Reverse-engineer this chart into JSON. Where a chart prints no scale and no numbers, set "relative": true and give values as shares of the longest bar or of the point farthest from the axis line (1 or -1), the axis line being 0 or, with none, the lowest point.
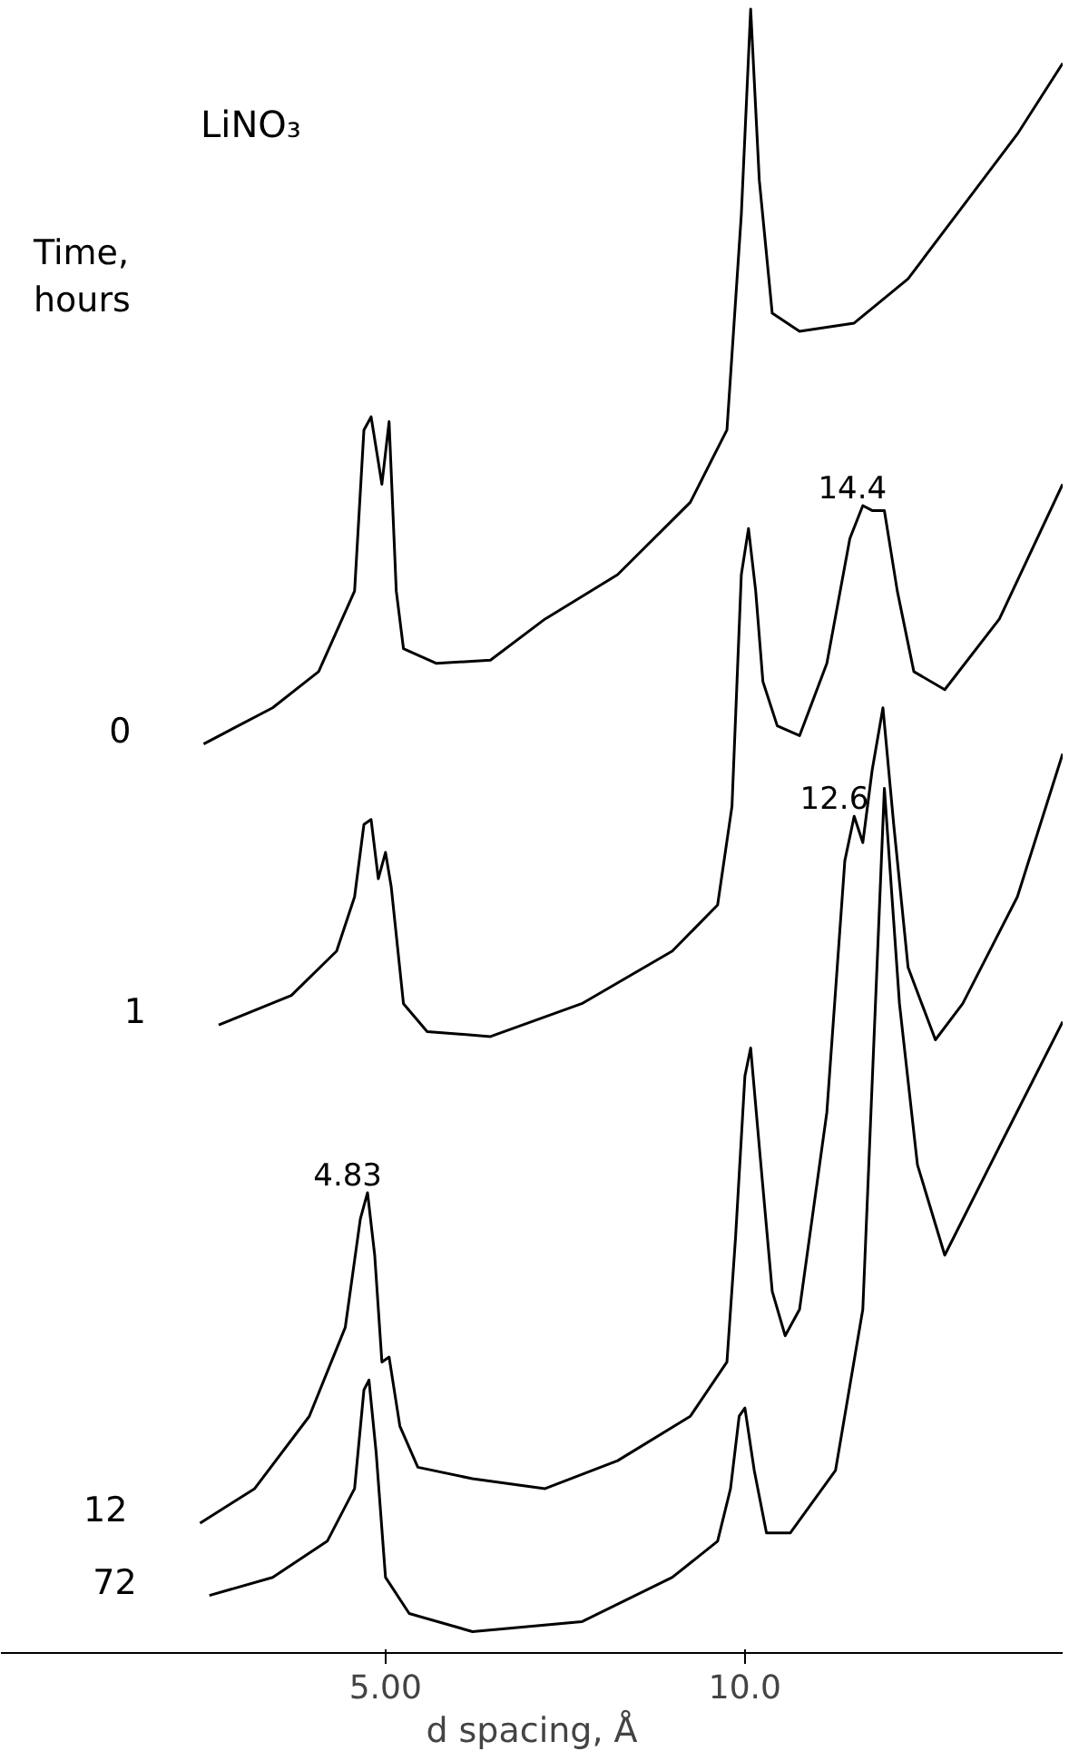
{
  "chart_data": {
    "type": "line",
    "title": "LiNO₃",
    "legend_title": "Time, hours",
    "xlabel": "d spacing, Å",
    "relative": true,
    "xlim": [
      -0.35,
      14.42
    ],
    "xticks": [
      {
        "value": 5,
        "label": "5.00"
      },
      {
        "value": 10,
        "label": "10.0"
      }
    ],
    "grid": false,
    "legend": false,
    "marker": "none",
    "line_style": "solid",
    "series": [
      {
        "name": "0",
        "color": "#000000",
        "x": [
          2.47,
          3.43,
          4.07,
          4.57,
          4.7,
          4.8,
          4.95,
          5.05,
          5.15,
          5.25,
          5.71,
          6.46,
          7.22,
          8.23,
          9.24,
          9.75,
          9.95,
          10.08,
          10.2,
          10.38,
          10.76,
          11.52,
          12.27,
          13.03,
          13.79,
          14.42
        ],
        "values": [
          0.553,
          0.575,
          0.597,
          0.646,
          0.744,
          0.752,
          0.711,
          0.749,
          0.646,
          0.611,
          0.602,
          0.604,
          0.629,
          0.656,
          0.7,
          0.744,
          0.875,
          1.0,
          0.896,
          0.815,
          0.804,
          0.809,
          0.836,
          0.88,
          0.924,
          0.967
        ]
      },
      {
        "name": "1",
        "color": "#000000",
        "x": [
          2.68,
          3.69,
          4.32,
          4.57,
          4.7,
          4.8,
          4.9,
          5.0,
          5.08,
          5.25,
          5.58,
          6.46,
          7.73,
          8.99,
          9.62,
          9.82,
          9.95,
          10.05,
          10.15,
          10.25,
          10.45,
          10.76,
          11.14,
          11.46,
          11.64,
          11.77,
          11.94,
          12.12,
          12.35,
          12.78,
          13.54,
          14.42
        ],
        "values": [
          0.382,
          0.4,
          0.427,
          0.46,
          0.504,
          0.507,
          0.471,
          0.487,
          0.466,
          0.395,
          0.378,
          0.375,
          0.395,
          0.427,
          0.455,
          0.515,
          0.656,
          0.684,
          0.646,
          0.591,
          0.564,
          0.558,
          0.602,
          0.678,
          0.698,
          0.695,
          0.695,
          0.646,
          0.597,
          0.586,
          0.629,
          0.711
        ]
      },
      {
        "name": "12",
        "color": "#000000",
        "x": [
          2.42,
          3.18,
          3.94,
          4.44,
          4.65,
          4.75,
          4.85,
          4.95,
          5.05,
          5.2,
          5.45,
          6.21,
          7.22,
          8.23,
          9.24,
          9.75,
          9.87,
          10.0,
          10.08,
          10.2,
          10.38,
          10.56,
          10.76,
          11.14,
          11.39,
          11.52,
          11.64,
          11.77,
          11.92,
          12.07,
          12.27,
          12.65,
          13.03,
          13.79,
          14.42
        ],
        "values": [
          0.079,
          0.1,
          0.144,
          0.198,
          0.264,
          0.28,
          0.242,
          0.177,
          0.18,
          0.138,
          0.113,
          0.106,
          0.1,
          0.117,
          0.144,
          0.177,
          0.253,
          0.351,
          0.368,
          0.308,
          0.22,
          0.193,
          0.209,
          0.329,
          0.482,
          0.509,
          0.493,
          0.537,
          0.575,
          0.504,
          0.417,
          0.373,
          0.395,
          0.46,
          0.547
        ]
      },
      {
        "name": "72",
        "color": "#000000",
        "x": [
          2.55,
          3.43,
          4.19,
          4.57,
          4.7,
          4.77,
          4.87,
          5.0,
          5.33,
          6.21,
          7.73,
          8.99,
          9.62,
          9.8,
          9.92,
          10.0,
          10.13,
          10.3,
          10.63,
          11.26,
          11.64,
          11.94,
          12.15,
          12.4,
          12.78,
          13.54,
          14.42
        ],
        "values": [
          0.035,
          0.046,
          0.068,
          0.1,
          0.16,
          0.166,
          0.122,
          0.046,
          0.024,
          0.013,
          0.019,
          0.046,
          0.068,
          0.1,
          0.144,
          0.149,
          0.111,
          0.073,
          0.073,
          0.111,
          0.209,
          0.526,
          0.395,
          0.297,
          0.242,
          0.308,
          0.384
        ]
      }
    ],
    "annotations": [
      {
        "text": "4.83",
        "x": 4.75,
        "y": 0.28
      },
      {
        "text": "12.6",
        "x": 11.52,
        "y": 0.509
      },
      {
        "text": "14.4",
        "x": 11.77,
        "y": 0.698
      }
    ]
  }
}
